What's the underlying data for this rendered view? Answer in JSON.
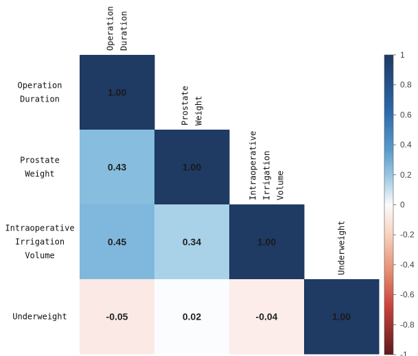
{
  "chart_data": {
    "type": "heatmap",
    "title": "",
    "variables": [
      [
        "Operation",
        "Duration"
      ],
      [
        "Prostate",
        "Weight"
      ],
      [
        "Intraoperative",
        "Irrigation",
        "Volume"
      ],
      [
        "Underweight"
      ]
    ],
    "matrix": [
      [
        1.0,
        null,
        null,
        null
      ],
      [
        0.43,
        1.0,
        null,
        null
      ],
      [
        0.45,
        0.34,
        1.0,
        null
      ],
      [
        -0.05,
        0.02,
        -0.04,
        1.0
      ]
    ],
    "value_labels": [
      [
        "1.00",
        null,
        null,
        null
      ],
      [
        "0.43",
        "1.00",
        null,
        null
      ],
      [
        "0.45",
        "0.34",
        "1.00",
        null
      ],
      [
        "-0.05",
        "0.02",
        "-0.04",
        "1.00"
      ]
    ],
    "colorbar": {
      "range": [
        -1,
        1
      ],
      "ticks": [
        "1",
        "0.8",
        "0.6",
        "0.4",
        "0.2",
        "0",
        "-0.2",
        "-0.4",
        "-0.6",
        "-0.8",
        "-1"
      ],
      "tick_values": [
        1,
        0.8,
        0.6,
        0.4,
        0.2,
        0,
        -0.2,
        -0.4,
        -0.6,
        -0.8,
        -1
      ],
      "colormap": "RdBu"
    },
    "colors": {
      "pos_max": "#1f3a63",
      "pos_high": "#2f6fae",
      "pos_mid": "#7fb8dc",
      "pos_low": "#a9d2e8",
      "zero": "#ffffff",
      "neg_low": "#f4b39a",
      "neg_mid": "#d9604e",
      "neg_max": "#5c1a1f"
    }
  }
}
